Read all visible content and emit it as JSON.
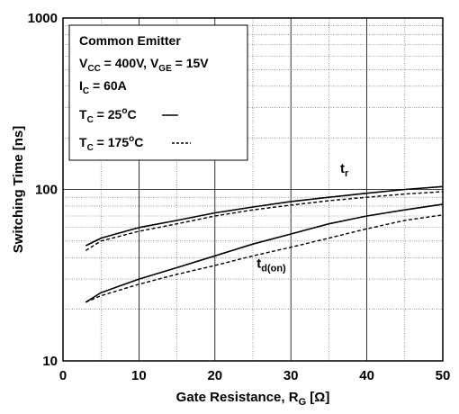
{
  "chart_data": {
    "type": "line",
    "xlabel": "Gate Resistance, R",
    "xlabel_sub": "G",
    "xlabel_tail": " [Ω]",
    "ylabel": "Switching Time [ns]",
    "xlim": [
      0,
      50
    ],
    "ylim": [
      10,
      1000
    ],
    "yscale": "log",
    "grid": true,
    "x_ticks": [
      0,
      10,
      20,
      30,
      40,
      50
    ],
    "y_ticks": [
      10,
      100,
      1000
    ],
    "legend": {
      "placement": "top-left",
      "title": "Common Emitter",
      "line2": {
        "a_main": "V",
        "a_sub": "CC",
        "a_tail": " = 400V, ",
        "b_main": "V",
        "b_sub": "GE",
        "b_tail": " = 15V"
      },
      "line3": {
        "main": "I",
        "sub": "C",
        "tail": " = 60A"
      },
      "entries": [
        {
          "main": "T",
          "sub": "C",
          "tail": " = 25",
          "sup": "o",
          "unit": "C",
          "style": "solid"
        },
        {
          "main": "T",
          "sub": "C",
          "tail": " = 175",
          "sup": "o",
          "unit": "C",
          "style": "dashed"
        }
      ]
    },
    "annotations": [
      {
        "main": "t",
        "sub": "r",
        "x": 36.5,
        "y": 125
      },
      {
        "main": "t",
        "sub": "d(on)",
        "x": 25.5,
        "y": 35
      }
    ],
    "series": [
      {
        "label": "t_r, 25°C",
        "style": "solid",
        "x": [
          3,
          5,
          10,
          15,
          20,
          25,
          30,
          35,
          40,
          45,
          50
        ],
        "y": [
          47,
          52,
          60,
          66,
          73,
          79,
          85,
          90,
          95,
          100,
          104
        ]
      },
      {
        "label": "t_r, 175°C",
        "style": "dashed",
        "x": [
          3,
          5,
          10,
          15,
          20,
          25,
          30,
          35,
          40,
          45,
          50
        ],
        "y": [
          44,
          50,
          57,
          63,
          70,
          76,
          81,
          86,
          90,
          94,
          97
        ]
      },
      {
        "label": "t_d(on), 25°C",
        "style": "solid",
        "x": [
          3,
          5,
          10,
          15,
          20,
          25,
          30,
          35,
          40,
          45,
          50
        ],
        "y": [
          22,
          25,
          30,
          35,
          41,
          48,
          55,
          63,
          70,
          76,
          82
        ]
      },
      {
        "label": "t_d(on), 175°C",
        "style": "dashed",
        "x": [
          3,
          5,
          10,
          15,
          20,
          25,
          30,
          35,
          40,
          45,
          50
        ],
        "y": [
          22,
          24,
          28,
          32,
          36,
          41,
          46,
          52,
          59,
          66,
          71
        ]
      }
    ]
  }
}
